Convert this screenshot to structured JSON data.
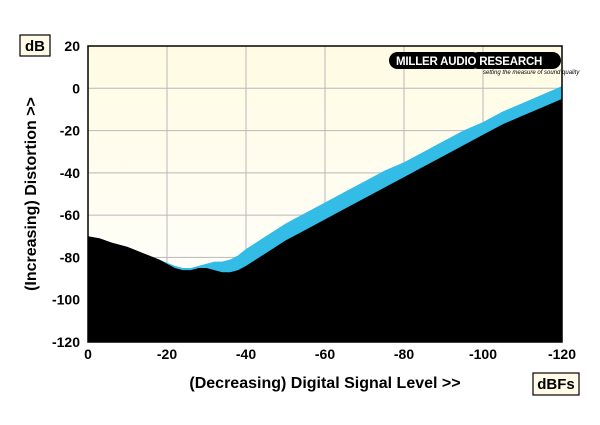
{
  "chart_data": {
    "type": "area",
    "ylabel": "(Increasing) Distortion >>",
    "xlabel": "(Decreasing) Digital Signal Level >>",
    "y_unit": "dB",
    "x_unit": "dBFs",
    "xlim": [
      0,
      -120
    ],
    "ylim": [
      -120,
      20
    ],
    "x_ticks": [
      0,
      -20,
      -40,
      -60,
      -80,
      -100,
      -120
    ],
    "y_ticks": [
      20,
      0,
      -20,
      -40,
      -60,
      -80,
      -100,
      -120
    ],
    "grid": true,
    "series": [
      {
        "x": [
          0,
          -3,
          -6,
          -10,
          -14,
          -18,
          -20,
          -22,
          -24,
          -26,
          -28,
          -30,
          -32,
          -34,
          -36,
          -38,
          -40,
          -45,
          -50,
          -55,
          -60,
          -65,
          -70,
          -75,
          -80,
          -85,
          -90,
          -95,
          -100,
          -105,
          -110,
          -115,
          -120
        ],
        "values": [
          -70,
          -71,
          -73,
          -75,
          -78,
          -81,
          -83,
          -85,
          -86,
          -86,
          -85,
          -85,
          -86,
          -87,
          -87,
          -86,
          -84,
          -78,
          -72,
          -67,
          -62,
          -57,
          -52,
          -47,
          -42,
          -37,
          -32,
          -27,
          -22,
          -17,
          -13,
          -9,
          -5
        ],
        "color": "#000000"
      },
      {
        "x": [
          0,
          -3,
          -6,
          -10,
          -14,
          -18,
          -20,
          -22,
          -24,
          -26,
          -28,
          -30,
          -32,
          -34,
          -36,
          -38,
          -40,
          -45,
          -50,
          -55,
          -60,
          -65,
          -70,
          -75,
          -80,
          -85,
          -90,
          -95,
          -100,
          -105,
          -110,
          -115,
          -120
        ],
        "values": [
          -70,
          -71,
          -73,
          -75,
          -78,
          -81,
          -82.5,
          -84,
          -85,
          -85,
          -84,
          -83,
          -82,
          -82,
          -81,
          -79,
          -76,
          -70,
          -64,
          -59,
          -54,
          -49,
          -44,
          -39,
          -35,
          -30,
          -25,
          -20,
          -16,
          -11,
          -7,
          -3,
          1
        ],
        "color": "#33bde6"
      }
    ],
    "colors": {
      "plot_background": "#fffbe3",
      "upper_region": "#33bde6",
      "lower_region": "#000000"
    }
  },
  "logo": {
    "main": "MILLER AUDIO RESEARCH",
    "tagline": "setting the measure of sound quality"
  }
}
